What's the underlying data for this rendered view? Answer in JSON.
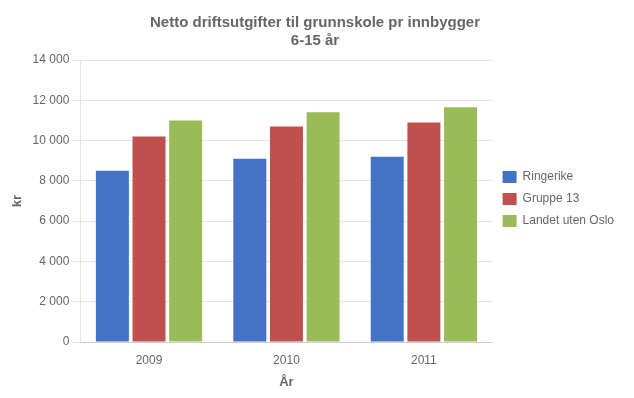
{
  "chart_data": {
    "type": "bar",
    "title": "Netto driftsutgifter til grunnskole pr innbygger\n6-15 år",
    "x_label": "År",
    "y_label": "kr",
    "categories": [
      "2009",
      "2010",
      "2011"
    ],
    "series": [
      {
        "name": "Ringerike",
        "color": "#4472C4",
        "values": [
          8500,
          9100,
          9200
        ]
      },
      {
        "name": "Gruppe 13",
        "color": "#C0504D",
        "values": [
          10200,
          10700,
          10900
        ]
      },
      {
        "name": "Landet uten Oslo",
        "color": "#9BBB59",
        "values": [
          11000,
          11400,
          11650
        ]
      }
    ],
    "ylim": [
      0,
      14000
    ],
    "yticks": [
      0,
      {
        "value": 2000,
        "label": "2 000"
      },
      {
        "value": 4000,
        "label": "4 000"
      },
      {
        "value": 6000,
        "label": "6 000"
      },
      {
        "value": 8000,
        "label": "8 000"
      },
      {
        "value": 10000,
        "label": "10 000"
      },
      {
        "value": 12000,
        "label": "12 000"
      },
      {
        "value": 14000,
        "label": "14 000"
      }
    ],
    "grid": true,
    "legend": "right"
  }
}
